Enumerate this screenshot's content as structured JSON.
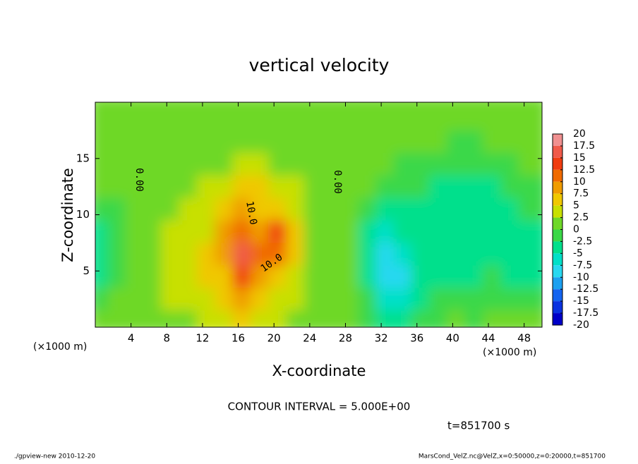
{
  "chart_data": {
    "type": "contour",
    "title": "vertical velocity",
    "x_label": "X-coordinate",
    "y_label": "Z-coordinate",
    "x_unit": "(×1000 m)",
    "y_unit": "(×1000 m)",
    "xlim": [
      0,
      50
    ],
    "ylim": [
      0,
      20
    ],
    "xticks": [
      4,
      8,
      12,
      16,
      20,
      24,
      28,
      32,
      36,
      40,
      44,
      48
    ],
    "yticks": [
      5,
      10,
      15
    ],
    "x": [
      1,
      3,
      5,
      7,
      9,
      11,
      13,
      15,
      17,
      19,
      21,
      23,
      25,
      27,
      29,
      31,
      33,
      35,
      37,
      39,
      41,
      43,
      45,
      47,
      49
    ],
    "z": [
      1,
      3,
      5,
      7,
      9,
      11,
      13,
      15,
      17,
      19
    ],
    "values": [
      [
        0,
        0,
        1,
        1,
        2,
        2,
        3,
        3,
        5,
        4,
        3,
        2,
        1,
        1,
        0,
        -1,
        -3,
        -3,
        -1,
        -1,
        0,
        -1,
        0,
        0,
        0
      ],
      [
        -1,
        0,
        1,
        2,
        3,
        3,
        4,
        5,
        8,
        6,
        4,
        3,
        2,
        1,
        0,
        -2,
        -6,
        -6,
        -3,
        -2,
        -2,
        -2,
        -1,
        -2,
        -2
      ],
      [
        -3,
        -1,
        1,
        2,
        4,
        4,
        5,
        7,
        14,
        8,
        6,
        4,
        2,
        1,
        0,
        -3,
        -9,
        -8,
        -4,
        -3,
        -3,
        -3,
        -2,
        -3,
        -3
      ],
      [
        -4,
        -2,
        1,
        2,
        3,
        4,
        5,
        8,
        15,
        10,
        12,
        5,
        2,
        1,
        0,
        -3,
        -9,
        -6,
        -4,
        -3,
        -4,
        -4,
        -3,
        -3,
        -3
      ],
      [
        -3,
        -2,
        1,
        2,
        3,
        3,
        4,
        9,
        12,
        9,
        13,
        6,
        2,
        1,
        0,
        -3,
        -6,
        -5,
        -4,
        -4,
        -4,
        -4,
        -4,
        -4,
        -3
      ],
      [
        -2,
        -1,
        1,
        1,
        2,
        3,
        3,
        5,
        9,
        7,
        7,
        4,
        2,
        1,
        0,
        -2,
        -3,
        -4,
        -4,
        -3,
        -3,
        -4,
        -5,
        -4,
        -2
      ],
      [
        0,
        0,
        1,
        1,
        2,
        2,
        3,
        4,
        5,
        5,
        4,
        3,
        1,
        1,
        0,
        0,
        -1,
        -2,
        -2,
        -3,
        -3,
        -3,
        -3,
        -2,
        -1
      ],
      [
        0,
        0,
        1,
        1,
        1,
        1,
        2,
        2,
        3,
        3,
        2,
        2,
        1,
        1,
        0,
        0,
        0,
        -1,
        -1,
        -1,
        -2,
        -2,
        -1,
        -1,
        0
      ],
      [
        0,
        0,
        0,
        1,
        1,
        1,
        1,
        1,
        1,
        1,
        1,
        1,
        1,
        0,
        0,
        0,
        0,
        0,
        0,
        0,
        -1,
        -1,
        0,
        0,
        0
      ],
      [
        0,
        0,
        0,
        0,
        1,
        1,
        1,
        1,
        1,
        1,
        1,
        1,
        0,
        0,
        0,
        0,
        0,
        0,
        0,
        0,
        0,
        0,
        0,
        0,
        0
      ]
    ],
    "colorbar": {
      "levels": [
        20,
        17.5,
        15,
        12.5,
        10,
        7.5,
        5,
        2.5,
        0,
        -2.5,
        -5,
        -7.5,
        -10,
        -12.5,
        -15,
        -17.5,
        -20
      ],
      "colors": [
        "#f09090",
        "#f05a4a",
        "#f03c10",
        "#f06a00",
        "#f09c00",
        "#f0c800",
        "#c8e000",
        "#6ed828",
        "#3ad848",
        "#00e08c",
        "#00e0c8",
        "#28d8f0",
        "#1ca0f0",
        "#1464f0",
        "#0a32e0",
        "#0000c8",
        "#6414c8"
      ]
    },
    "contour_labels": [
      {
        "value": 0,
        "label": "0.00"
      },
      {
        "value": 0,
        "label": "0.00"
      },
      {
        "value": 10,
        "label": "10.0"
      },
      {
        "value": 10,
        "label": "10.0"
      }
    ],
    "annotation": "CONTOUR INTERVAL = 5.000E+00",
    "time_label": "t=851700 s",
    "footer_left": "./gpview-new  2010-12-20",
    "footer_right": "MarsCond_VelZ.nc@VelZ,x=0:50000,z=0:20000,t=851700"
  }
}
